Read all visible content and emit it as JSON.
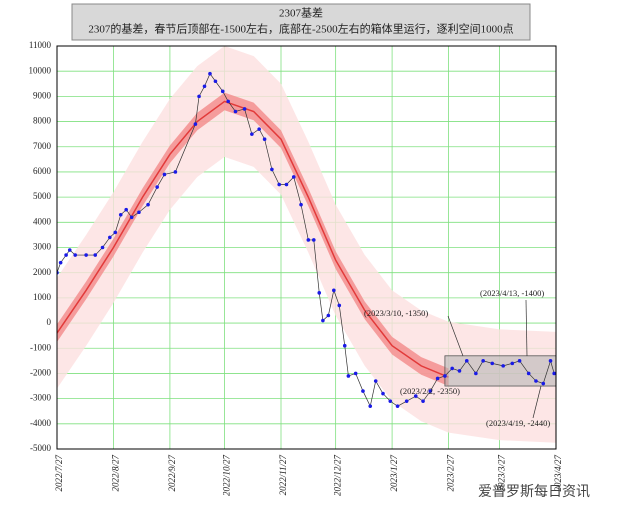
{
  "chart_data": {
    "type": "line",
    "title": "2307基差",
    "subtitle": "2307的基差，春节后顶部在-1500左右，底部在-2500左右的箱体里运行，逐利空间1000点",
    "xlim": [
      "2022/7/27",
      "2023/4/27"
    ],
    "xticks": [
      "2022/7/27",
      "2022/8/27",
      "2022/9/27",
      "2022/10/27",
      "2022/11/27",
      "2022/12/27",
      "2023/1/27",
      "2023/2/27",
      "2023/3/27",
      "2023/4/27"
    ],
    "ylim": [
      -5000,
      11000
    ],
    "yticks": [
      -5000,
      -4000,
      -3000,
      -2000,
      -1000,
      0,
      1000,
      2000,
      3000,
      4000,
      5000,
      6000,
      7000,
      8000,
      9000,
      10000,
      11000
    ],
    "grid": true,
    "grid_color": "#7fe07f",
    "series": [
      {
        "color": "#1a1ae6",
        "line_color": "#333333",
        "x": [
          "2022/7/27",
          "2022/7/29",
          "2022/8/1",
          "2022/8/3",
          "2022/8/6",
          "2022/8/12",
          "2022/8/17",
          "2022/8/21",
          "2022/8/25",
          "2022/8/28",
          "2022/8/31",
          "2022/9/3",
          "2022/9/6",
          "2022/9/10",
          "2022/9/15",
          "2022/9/20",
          "2022/9/24",
          "2022/9/30",
          "2022/10/11",
          "2022/10/13",
          "2022/10/16",
          "2022/10/19",
          "2022/10/22",
          "2022/10/26",
          "2022/10/29",
          "2022/11/2",
          "2022/11/7",
          "2022/11/11",
          "2022/11/15",
          "2022/11/18",
          "2022/11/22",
          "2022/11/26",
          "2022/11/30",
          "2022/12/4",
          "2022/12/8",
          "2022/12/12",
          "2022/12/15",
          "2022/12/18",
          "2022/12/20",
          "2022/12/23",
          "2022/12/26",
          "2022/12/29",
          "2023/1/1",
          "2023/1/3",
          "2023/1/7",
          "2023/1/11",
          "2023/1/15",
          "2023/1/18",
          "2023/1/22",
          "2023/1/26",
          "2023/1/30",
          "2023/2/4",
          "2023/2/9",
          "2023/2/13",
          "2023/2/17",
          "2023/2/21",
          "2023/2/25",
          "2023/3/1",
          "2023/3/5",
          "2023/3/9",
          "2023/3/14",
          "2023/3/18",
          "2023/3/23",
          "2023/3/29",
          "2023/4/3",
          "2023/4/7",
          "2023/4/12",
          "2023/4/16",
          "2023/4/20",
          "2023/4/24",
          "2023/4/26"
        ],
        "values": [
          2000,
          2400,
          2700,
          2900,
          2700,
          2700,
          2700,
          3000,
          3400,
          3600,
          4300,
          4500,
          4200,
          4400,
          4700,
          5400,
          5900,
          6000,
          7900,
          9000,
          9400,
          9900,
          9600,
          9200,
          8800,
          8400,
          8500,
          7500,
          7700,
          7300,
          6100,
          5500,
          5500,
          5800,
          4700,
          3300,
          3300,
          1200,
          100,
          300,
          1300,
          700,
          -900,
          -2100,
          -2000,
          -2700,
          -3300,
          -2300,
          -2800,
          -3100,
          -3300,
          -3100,
          -2900,
          -3100,
          -2700,
          -2200,
          -2100,
          -1800,
          -1900,
          -1500,
          -2000,
          -1500,
          -1600,
          -1700,
          -1600,
          -1500,
          -2000,
          -2300,
          -2400,
          -1500,
          -2000
        ]
      }
    ],
    "fit": {
      "color": "#e23a3a",
      "inner_color": "#f28a8a",
      "outer_color": "#fde0e0",
      "x": [
        "2022/7/27",
        "2022/8/12",
        "2022/8/27",
        "2022/9/12",
        "2022/9/27",
        "2022/10/12",
        "2022/10/27",
        "2022/11/12",
        "2022/11/27",
        "2022/12/12",
        "2022/12/27",
        "2023/1/12",
        "2023/1/27",
        "2023/2/12",
        "2023/2/27",
        "2023/3/27",
        "2023/4/27"
      ],
      "values": [
        -400,
        1300,
        3000,
        5000,
        6700,
        8000,
        8800,
        8400,
        7300,
        5000,
        2500,
        500,
        -900,
        -1700,
        -2150,
        null,
        null
      ],
      "inner_upper": [
        -50,
        1650,
        3350,
        5350,
        7050,
        8350,
        9150,
        8750,
        7650,
        5350,
        2850,
        850,
        -550,
        -1350,
        -1800,
        null,
        null
      ],
      "inner_lower": [
        -750,
        950,
        2650,
        4650,
        6350,
        7650,
        8450,
        8050,
        6950,
        4650,
        2150,
        150,
        -1250,
        -2050,
        -2500,
        null,
        null
      ],
      "outer_upper": [
        1800,
        3500,
        5200,
        7200,
        8900,
        10200,
        11000,
        10600,
        9500,
        7200,
        4700,
        2700,
        1300,
        500,
        50,
        -250,
        -350
      ],
      "outer_lower": [
        -2600,
        -900,
        800,
        2800,
        4500,
        5800,
        6600,
        6200,
        5100,
        2800,
        300,
        -1700,
        -3100,
        -3900,
        -4350,
        -4650,
        -4750
      ]
    },
    "box": {
      "x": [
        "2023/2/25",
        "2023/4/27"
      ],
      "y": [
        -1300,
        -2500
      ],
      "color": "#b0b0b0"
    },
    "annotations": [
      "(2023/3/10, -1350)",
      "(2023/4/13, -1400)",
      "(2023/2/2, -2350)",
      "(2023/4/19, -2440)"
    ],
    "watermark": "爱普罗斯每日资讯"
  }
}
